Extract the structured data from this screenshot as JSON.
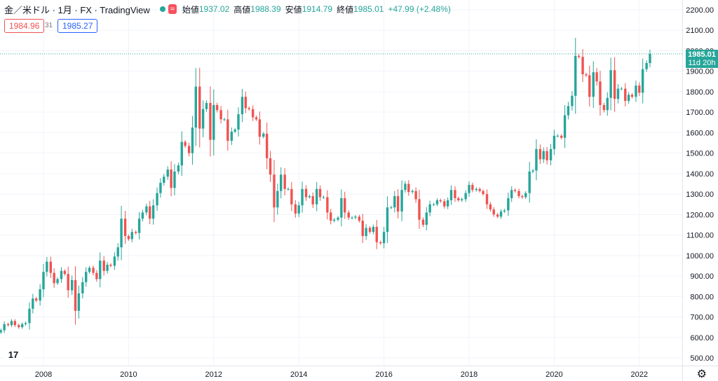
{
  "header": {
    "symbol": "金／米ドル · 1月 · FX · TradingView",
    "market_badge": "≈",
    "ohlc": [
      {
        "label": "始値",
        "value": "1937.02"
      },
      {
        "label": "高値",
        "value": "1988.39"
      },
      {
        "label": "安値",
        "value": "1914.79"
      },
      {
        "label": "終値",
        "value": "1985.01"
      }
    ],
    "change": "+47.99 (+2.48%)"
  },
  "quote": {
    "bid": "1984.96",
    "spread": "31",
    "ask": "1985.27"
  },
  "last_price": {
    "price": "1985.01",
    "countdown": "11d 20h"
  },
  "logo_text": "17",
  "settings_icon": "gear-icon",
  "colors": {
    "up": "#26a69a",
    "down": "#ef5350",
    "bid": "#ef5350",
    "ask": "#2962ff",
    "grid": "#f0f3fa",
    "text": "#131722"
  },
  "chart_data": {
    "type": "candlestick",
    "title": "金／米ドル · 1月 · FX · TradingView",
    "interval": "1 month",
    "ylim": [
      470,
      2220
    ],
    "yticks": [
      500,
      600,
      700,
      800,
      900,
      1000,
      1100,
      1200,
      1300,
      1400,
      1500,
      1600,
      1700,
      1800,
      1900,
      2000,
      2100,
      2200
    ],
    "xticks": [
      "2008",
      "2010",
      "2012",
      "2014",
      "2016",
      "2018",
      "2020",
      "2022"
    ],
    "grid": true,
    "start": "2007-01",
    "points": [
      [
        2007.0,
        635
      ],
      [
        2007.08,
        665
      ],
      [
        2007.17,
        660
      ],
      [
        2007.25,
        680
      ],
      [
        2007.33,
        660
      ],
      [
        2007.42,
        650
      ],
      [
        2007.5,
        665
      ],
      [
        2007.58,
        670
      ],
      [
        2007.67,
        740
      ],
      [
        2007.75,
        790
      ],
      [
        2007.83,
        780
      ],
      [
        2007.92,
        835
      ],
      [
        2008.0,
        920
      ],
      [
        2008.08,
        970
      ],
      [
        2008.17,
        915
      ],
      [
        2008.25,
        865
      ],
      [
        2008.33,
        885
      ],
      [
        2008.42,
        925
      ],
      [
        2008.5,
        910
      ],
      [
        2008.58,
        830
      ],
      [
        2008.67,
        880
      ],
      [
        2008.75,
        730
      ],
      [
        2008.83,
        815
      ],
      [
        2008.92,
        870
      ],
      [
        2009.0,
        920
      ],
      [
        2009.08,
        940
      ],
      [
        2009.17,
        915
      ],
      [
        2009.25,
        885
      ],
      [
        2009.33,
        975
      ],
      [
        2009.42,
        925
      ],
      [
        2009.5,
        955
      ],
      [
        2009.58,
        950
      ],
      [
        2009.67,
        995
      ],
      [
        2009.75,
        1040
      ],
      [
        2009.83,
        1180
      ],
      [
        2009.92,
        1095
      ],
      [
        2010.0,
        1080
      ],
      [
        2010.08,
        1115
      ],
      [
        2010.17,
        1110
      ],
      [
        2010.25,
        1180
      ],
      [
        2010.33,
        1210
      ],
      [
        2010.42,
        1240
      ],
      [
        2010.5,
        1180
      ],
      [
        2010.58,
        1245
      ],
      [
        2010.67,
        1305
      ],
      [
        2010.75,
        1355
      ],
      [
        2010.83,
        1385
      ],
      [
        2010.92,
        1420
      ],
      [
        2011.0,
        1330
      ],
      [
        2011.08,
        1410
      ],
      [
        2011.17,
        1440
      ],
      [
        2011.25,
        1555
      ],
      [
        2011.33,
        1535
      ],
      [
        2011.42,
        1500
      ],
      [
        2011.5,
        1625
      ],
      [
        2011.58,
        1825
      ],
      [
        2011.67,
        1620
      ],
      [
        2011.75,
        1715
      ],
      [
        2011.83,
        1745
      ],
      [
        2011.92,
        1565
      ],
      [
        2012.0,
        1735
      ],
      [
        2012.08,
        1710
      ],
      [
        2012.17,
        1665
      ],
      [
        2012.25,
        1665
      ],
      [
        2012.33,
        1560
      ],
      [
        2012.42,
        1605
      ],
      [
        2012.5,
        1615
      ],
      [
        2012.58,
        1690
      ],
      [
        2012.67,
        1775
      ],
      [
        2012.75,
        1720
      ],
      [
        2012.83,
        1715
      ],
      [
        2012.92,
        1675
      ],
      [
        2013.0,
        1665
      ],
      [
        2013.08,
        1580
      ],
      [
        2013.17,
        1595
      ],
      [
        2013.25,
        1475
      ],
      [
        2013.33,
        1395
      ],
      [
        2013.42,
        1235
      ],
      [
        2013.5,
        1315
      ],
      [
        2013.58,
        1395
      ],
      [
        2013.67,
        1325
      ],
      [
        2013.75,
        1325
      ],
      [
        2013.83,
        1250
      ],
      [
        2013.92,
        1205
      ],
      [
        2014.0,
        1245
      ],
      [
        2014.08,
        1325
      ],
      [
        2014.17,
        1285
      ],
      [
        2014.25,
        1290
      ],
      [
        2014.33,
        1250
      ],
      [
        2014.42,
        1325
      ],
      [
        2014.5,
        1285
      ],
      [
        2014.58,
        1285
      ],
      [
        2014.67,
        1210
      ],
      [
        2014.75,
        1170
      ],
      [
        2014.83,
        1175
      ],
      [
        2014.92,
        1185
      ],
      [
        2015.0,
        1280
      ],
      [
        2015.08,
        1210
      ],
      [
        2015.17,
        1185
      ],
      [
        2015.25,
        1185
      ],
      [
        2015.33,
        1190
      ],
      [
        2015.42,
        1170
      ],
      [
        2015.5,
        1095
      ],
      [
        2015.58,
        1135
      ],
      [
        2015.67,
        1115
      ],
      [
        2015.75,
        1140
      ],
      [
        2015.83,
        1065
      ],
      [
        2015.92,
        1060
      ],
      [
        2016.0,
        1115
      ],
      [
        2016.08,
        1235
      ],
      [
        2016.17,
        1235
      ],
      [
        2016.25,
        1290
      ],
      [
        2016.33,
        1215
      ],
      [
        2016.42,
        1320
      ],
      [
        2016.5,
        1350
      ],
      [
        2016.58,
        1310
      ],
      [
        2016.67,
        1315
      ],
      [
        2016.75,
        1275
      ],
      [
        2016.83,
        1175
      ],
      [
        2016.92,
        1150
      ],
      [
        2017.0,
        1210
      ],
      [
        2017.08,
        1250
      ],
      [
        2017.17,
        1250
      ],
      [
        2017.25,
        1270
      ],
      [
        2017.33,
        1265
      ],
      [
        2017.42,
        1240
      ],
      [
        2017.5,
        1270
      ],
      [
        2017.58,
        1320
      ],
      [
        2017.67,
        1280
      ],
      [
        2017.75,
        1270
      ],
      [
        2017.83,
        1275
      ],
      [
        2017.92,
        1305
      ],
      [
        2018.0,
        1345
      ],
      [
        2018.08,
        1320
      ],
      [
        2018.17,
        1325
      ],
      [
        2018.25,
        1315
      ],
      [
        2018.33,
        1300
      ],
      [
        2018.42,
        1250
      ],
      [
        2018.5,
        1225
      ],
      [
        2018.58,
        1200
      ],
      [
        2018.67,
        1190
      ],
      [
        2018.75,
        1215
      ],
      [
        2018.83,
        1220
      ],
      [
        2018.92,
        1280
      ],
      [
        2019.0,
        1320
      ],
      [
        2019.08,
        1315
      ],
      [
        2019.17,
        1290
      ],
      [
        2019.25,
        1285
      ],
      [
        2019.33,
        1305
      ],
      [
        2019.42,
        1410
      ],
      [
        2019.5,
        1415
      ],
      [
        2019.58,
        1520
      ],
      [
        2019.67,
        1470
      ],
      [
        2019.75,
        1510
      ],
      [
        2019.83,
        1465
      ],
      [
        2019.92,
        1520
      ],
      [
        2020.0,
        1585
      ],
      [
        2020.08,
        1585
      ],
      [
        2020.17,
        1575
      ],
      [
        2020.25,
        1685
      ],
      [
        2020.33,
        1730
      ],
      [
        2020.42,
        1780
      ],
      [
        2020.5,
        1975
      ],
      [
        2020.58,
        1970
      ],
      [
        2020.67,
        1885
      ],
      [
        2020.75,
        1880
      ],
      [
        2020.83,
        1775
      ],
      [
        2020.92,
        1895
      ],
      [
        2021.0,
        1850
      ],
      [
        2021.08,
        1735
      ],
      [
        2021.17,
        1710
      ],
      [
        2021.25,
        1770
      ],
      [
        2021.33,
        1905
      ],
      [
        2021.42,
        1765
      ],
      [
        2021.5,
        1815
      ],
      [
        2021.58,
        1815
      ],
      [
        2021.67,
        1755
      ],
      [
        2021.75,
        1785
      ],
      [
        2021.83,
        1775
      ],
      [
        2021.92,
        1830
      ],
      [
        2022.0,
        1795
      ],
      [
        2022.08,
        1910
      ],
      [
        2022.17,
        1940
      ],
      [
        2022.25,
        1985
      ]
    ]
  }
}
